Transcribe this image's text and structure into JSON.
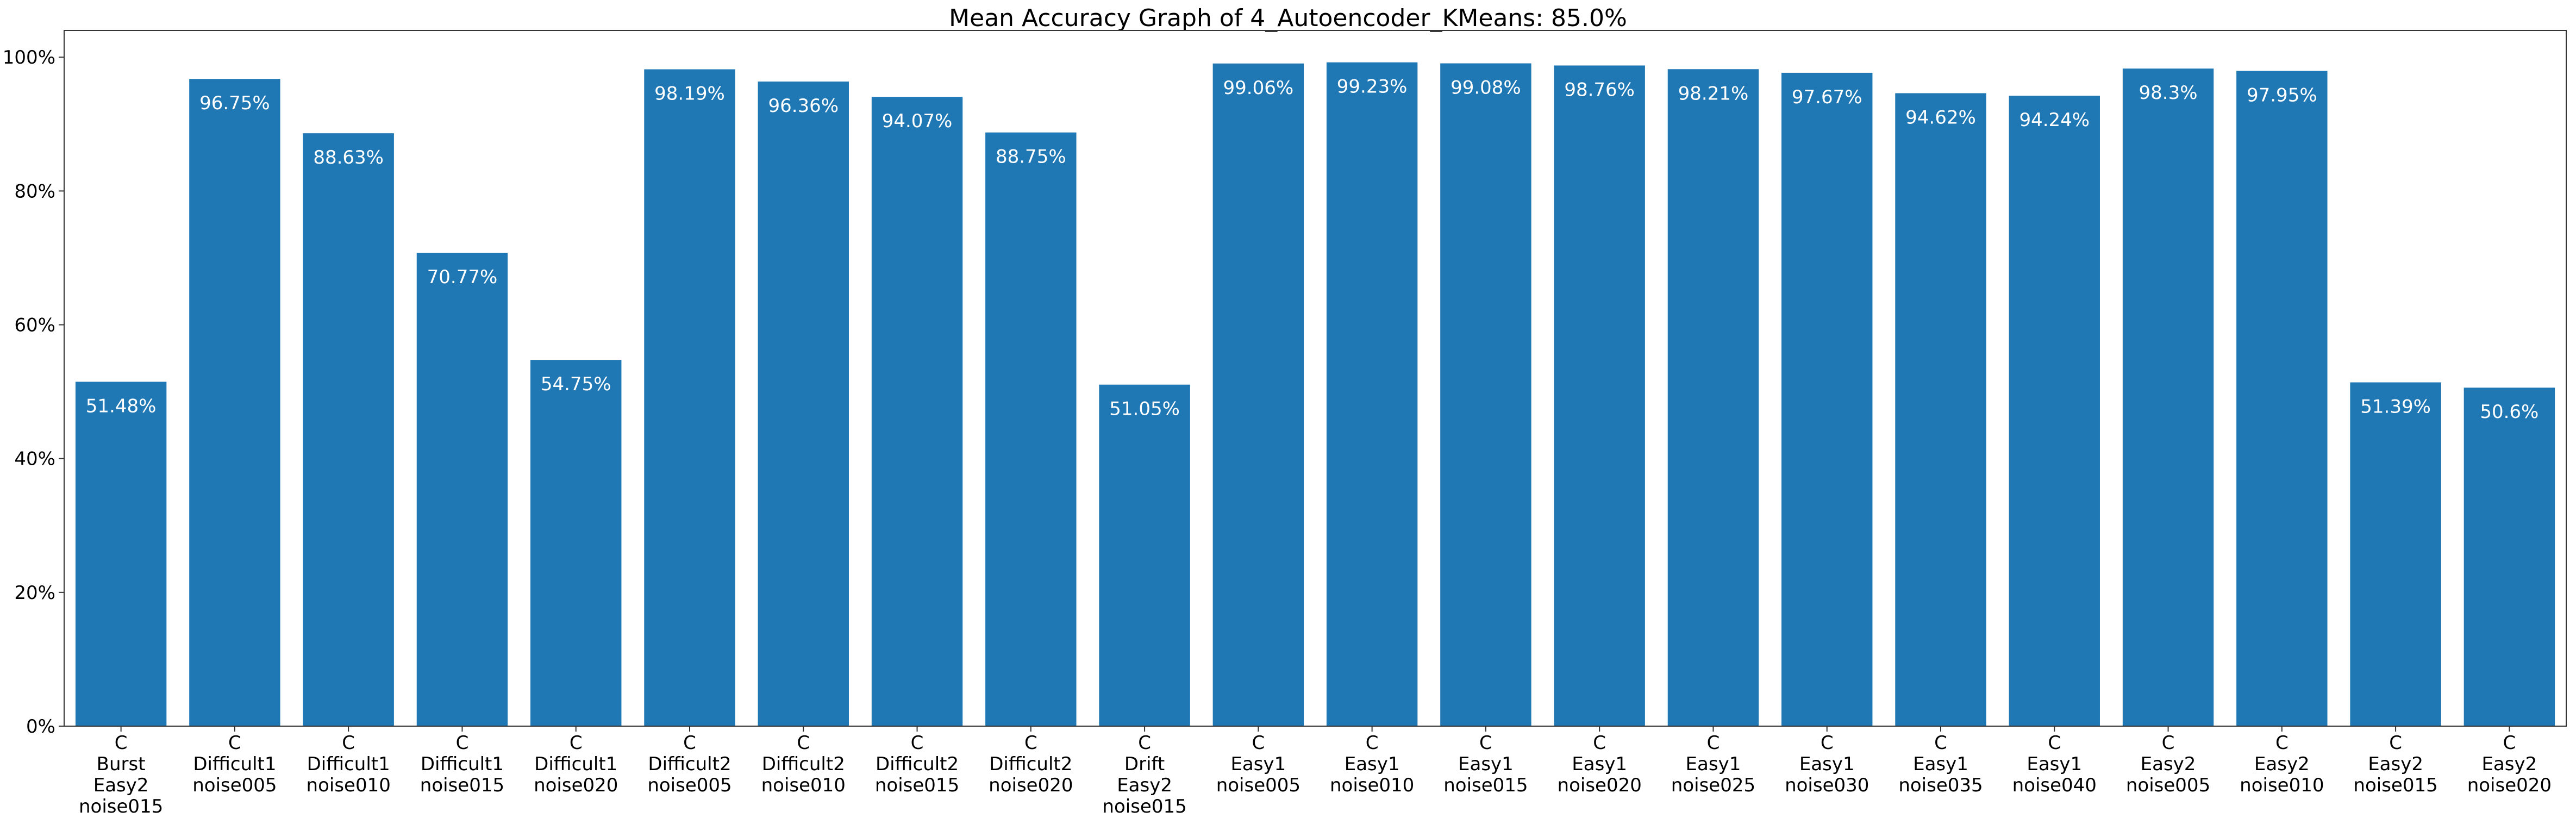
{
  "chart_data": {
    "type": "bar",
    "title": "Mean Accuracy Graph of 4_Autoencoder_KMeans: 85.0%",
    "xlabel": "",
    "ylabel": "",
    "ylim": [
      0,
      104
    ],
    "yticks": [
      0,
      20,
      40,
      60,
      80,
      100
    ],
    "ytick_labels": [
      "0%",
      "20%",
      "40%",
      "60%",
      "80%",
      "100%"
    ],
    "grid": false,
    "legend": "none",
    "bar_color": "#1f77b4",
    "label_color": "#ffffff",
    "categories": [
      [
        "C",
        "Burst",
        "Easy2",
        "noise015"
      ],
      [
        "C",
        "Difficult1",
        "noise005"
      ],
      [
        "C",
        "Difficult1",
        "noise010"
      ],
      [
        "C",
        "Difficult1",
        "noise015"
      ],
      [
        "C",
        "Difficult1",
        "noise020"
      ],
      [
        "C",
        "Difficult2",
        "noise005"
      ],
      [
        "C",
        "Difficult2",
        "noise010"
      ],
      [
        "C",
        "Difficult2",
        "noise015"
      ],
      [
        "C",
        "Difficult2",
        "noise020"
      ],
      [
        "C",
        "Drift",
        "Easy2",
        "noise015"
      ],
      [
        "C",
        "Easy1",
        "noise005"
      ],
      [
        "C",
        "Easy1",
        "noise010"
      ],
      [
        "C",
        "Easy1",
        "noise015"
      ],
      [
        "C",
        "Easy1",
        "noise020"
      ],
      [
        "C",
        "Easy1",
        "noise025"
      ],
      [
        "C",
        "Easy1",
        "noise030"
      ],
      [
        "C",
        "Easy1",
        "noise035"
      ],
      [
        "C",
        "Easy1",
        "noise040"
      ],
      [
        "C",
        "Easy2",
        "noise005"
      ],
      [
        "C",
        "Easy2",
        "noise010"
      ],
      [
        "C",
        "Easy2",
        "noise015"
      ],
      [
        "C",
        "Easy2",
        "noise020"
      ]
    ],
    "values": [
      51.48,
      96.75,
      88.63,
      70.77,
      54.75,
      98.19,
      96.36,
      94.07,
      88.75,
      51.05,
      99.06,
      99.23,
      99.08,
      98.76,
      98.21,
      97.67,
      94.62,
      94.24,
      98.3,
      97.95,
      51.39,
      50.6
    ],
    "data_labels": [
      "51.48%",
      "96.75%",
      "88.63%",
      "70.77%",
      "54.75%",
      "98.19%",
      "96.36%",
      "94.07%",
      "88.75%",
      "51.05%",
      "99.06%",
      "99.23%",
      "99.08%",
      "98.76%",
      "98.21%",
      "97.67%",
      "94.62%",
      "94.24%",
      "98.3%",
      "97.95%",
      "51.39%",
      "50.6%"
    ]
  }
}
